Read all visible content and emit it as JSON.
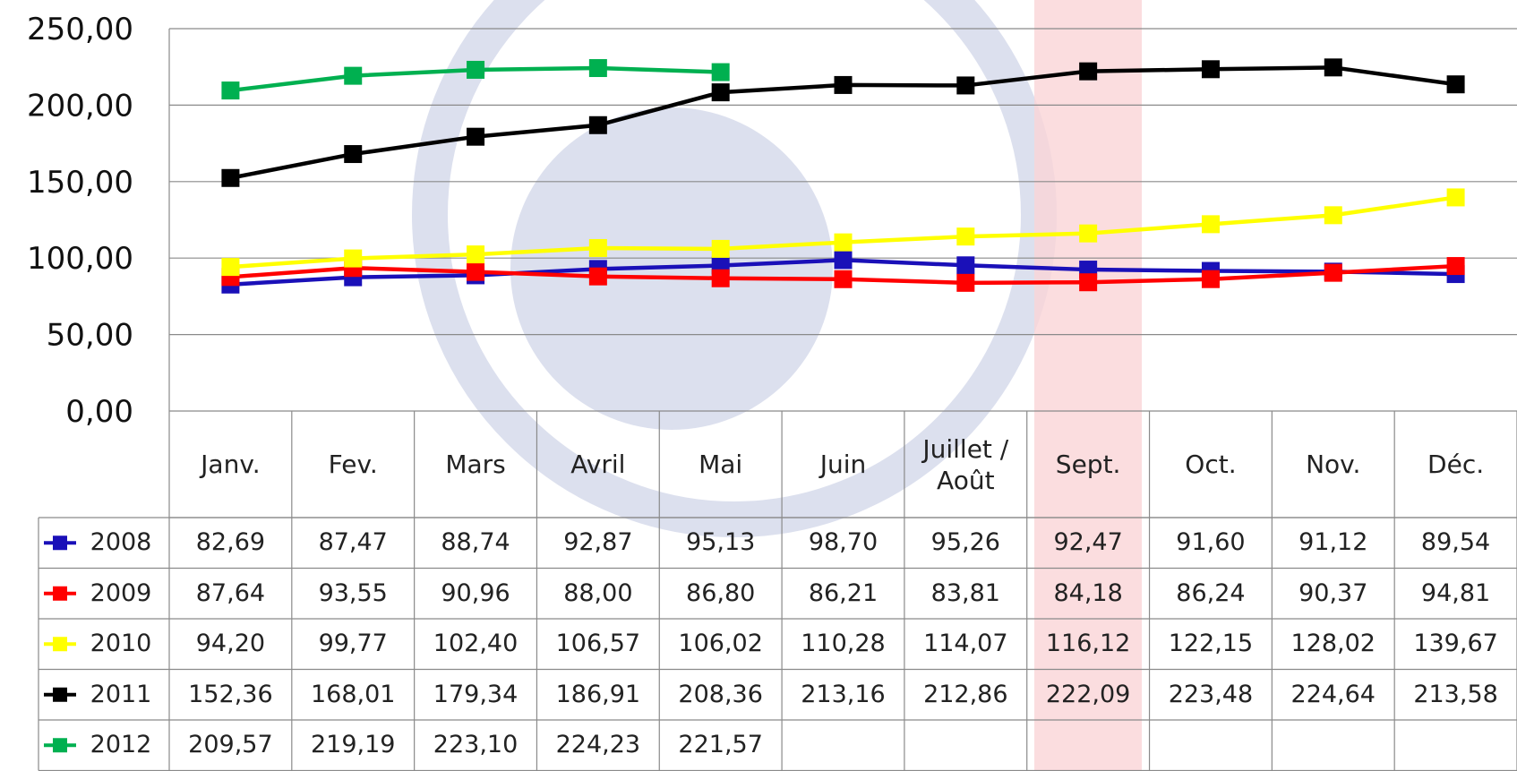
{
  "chart_data": {
    "type": "line",
    "categories": [
      "Janv.",
      "Fev.",
      "Mars",
      "Avril",
      "Mai",
      "Juin",
      "Juillet / Août",
      "Sept.",
      "Oct.",
      "Nov.",
      "Déc."
    ],
    "ylim": [
      0,
      250
    ],
    "yticks": [
      {
        "value": 0,
        "label": "0,00"
      },
      {
        "value": 50,
        "label": "50,00"
      },
      {
        "value": 100,
        "label": "100,00"
      },
      {
        "value": 150,
        "label": "150,00"
      },
      {
        "value": 200,
        "label": "200,00"
      },
      {
        "value": 250,
        "label": "250,00"
      }
    ],
    "grid": true,
    "series": [
      {
        "name": "2008",
        "color": "#1a10b8",
        "values": [
          82.69,
          87.47,
          88.74,
          92.87,
          95.13,
          98.7,
          95.26,
          92.47,
          91.6,
          91.12,
          89.54
        ],
        "value_labels": [
          "82,69",
          "87,47",
          "88,74",
          "92,87",
          "95,13",
          "98,70",
          "95,26",
          "92,47",
          "91,60",
          "91,12",
          "89,54"
        ]
      },
      {
        "name": "2009",
        "color": "#ff0000",
        "values": [
          87.64,
          93.55,
          90.96,
          88.0,
          86.8,
          86.21,
          83.81,
          84.18,
          86.24,
          90.37,
          94.81
        ],
        "value_labels": [
          "87,64",
          "93,55",
          "90,96",
          "88,00",
          "86,80",
          "86,21",
          "83,81",
          "84,18",
          "86,24",
          "90,37",
          "94,81"
        ]
      },
      {
        "name": "2010",
        "color": "#ffff00",
        "values": [
          94.2,
          99.77,
          102.4,
          106.57,
          106.02,
          110.28,
          114.07,
          116.12,
          122.15,
          128.02,
          139.67
        ],
        "value_labels": [
          "94,20",
          "99,77",
          "102,40",
          "106,57",
          "106,02",
          "110,28",
          "114,07",
          "116,12",
          "122,15",
          "128,02",
          "139,67"
        ]
      },
      {
        "name": "2011",
        "color": "#000000",
        "values": [
          152.36,
          168.01,
          179.34,
          186.91,
          208.36,
          213.16,
          212.86,
          222.09,
          223.48,
          224.64,
          213.58
        ],
        "value_labels": [
          "152,36",
          "168,01",
          "179,34",
          "186,91",
          "208,36",
          "213,16",
          "212,86",
          "222,09",
          "223,48",
          "224,64",
          "213,58"
        ]
      },
      {
        "name": "2012",
        "color": "#00b050",
        "values": [
          209.57,
          219.19,
          223.1,
          224.23,
          221.57,
          null,
          null,
          null,
          null,
          null,
          null
        ],
        "value_labels": [
          "209,57",
          "219,19",
          "223,10",
          "224,23",
          "221,57",
          null,
          null,
          null,
          null,
          null,
          null
        ]
      }
    ]
  }
}
